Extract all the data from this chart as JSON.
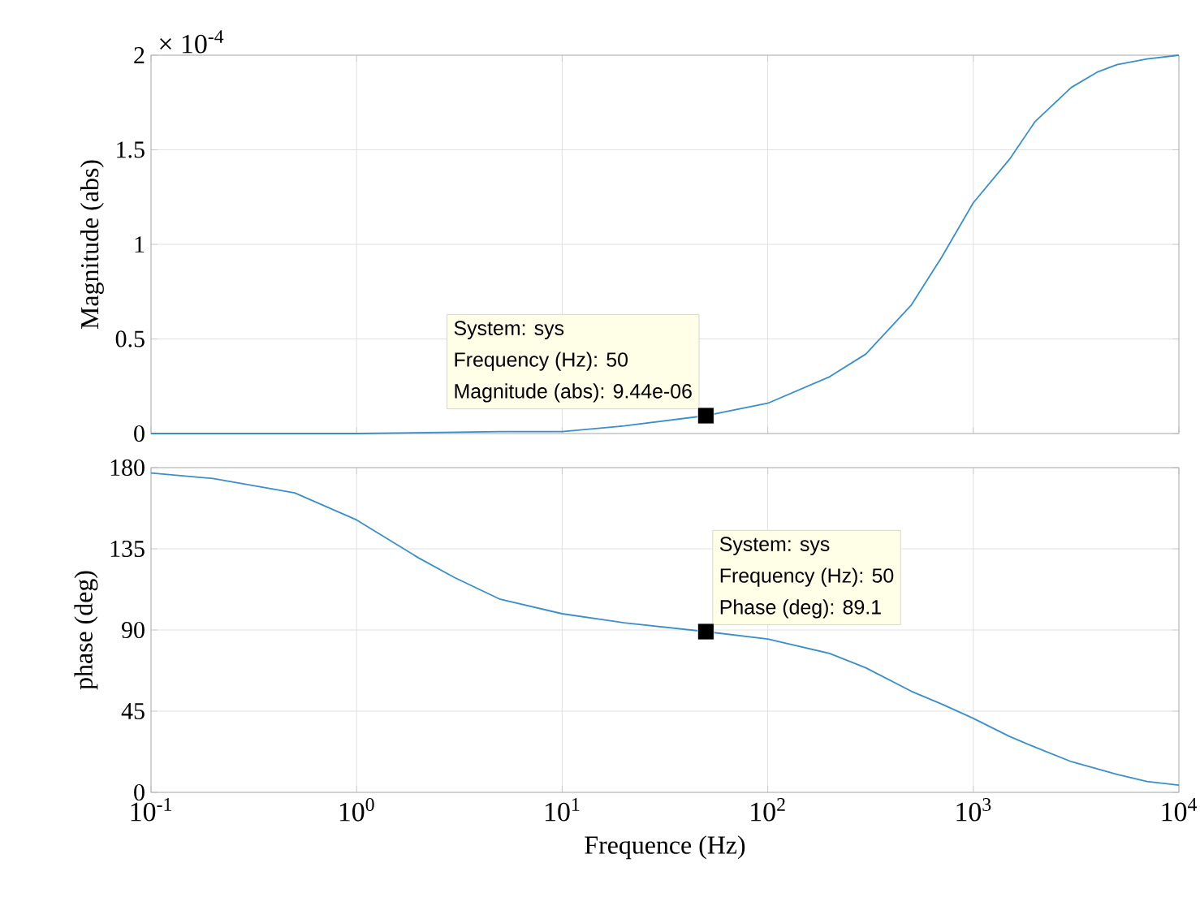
{
  "chart_data": [
    {
      "type": "line",
      "ylabel": "Magnitude (abs)",
      "log": "x",
      "grid": true,
      "tick_labels": "y",
      "xlim": [
        0.1,
        10000
      ],
      "xticks": [
        {
          "value": 0.1,
          "label": null
        },
        {
          "value": 1,
          "label": null
        },
        {
          "value": 10,
          "label": null
        },
        {
          "value": 100,
          "label": null
        },
        {
          "value": 1000,
          "label": null
        },
        {
          "value": 10000,
          "label": null
        }
      ],
      "ylim": [
        0,
        2
      ],
      "yticks": [
        0,
        0.5,
        1,
        1.5,
        2
      ],
      "series": [
        {
          "color": "#3a8fc8",
          "x": [
            0.1,
            1,
            5,
            10,
            20,
            50,
            100,
            200,
            300,
            500,
            700,
            1000,
            1500,
            2000,
            3000,
            4000,
            5000,
            7000,
            10000
          ],
          "values": [
            0,
            0,
            0.01,
            0.01,
            0.04,
            0.0944,
            0.16,
            0.3,
            0.42,
            0.68,
            0.93,
            1.22,
            1.45,
            1.65,
            1.83,
            1.91,
            1.95,
            1.98,
            2.0
          ]
        },
        {
          "type": "scatter",
          "marker": "square",
          "color": "#000000",
          "x": [
            50
          ],
          "values": [
            0.0944
          ]
        }
      ],
      "annotations": [
        "System: sys",
        "Frequency (Hz): 50",
        {
          "text": "Magnitude (abs): 9.44e-06",
          "x": 50,
          "y": 0.0944
        },
        "× 10$^{-4}$"
      ]
    },
    {
      "type": "line",
      "ylabel": "phase (deg)",
      "xlabel": "Frequence (Hz)",
      "log": "x",
      "grid": true,
      "xlim": [
        0.1,
        10000
      ],
      "xticks": [
        {
          "value": 0.1,
          "label": "10$^{-1}$"
        },
        {
          "value": 1,
          "label": "10$^{0}$"
        },
        {
          "value": 10,
          "label": "10$^{1}$"
        },
        {
          "value": 100,
          "label": "10$^{2}$"
        },
        {
          "value": 1000,
          "label": "10$^{3}$"
        },
        {
          "value": 10000,
          "label": "10$^{4}$"
        }
      ],
      "ylim": [
        0,
        180
      ],
      "yticks": [
        0,
        45,
        90,
        135,
        180
      ],
      "series": [
        {
          "color": "#3a8fc8",
          "x": [
            0.1,
            0.2,
            0.5,
            1,
            2,
            3,
            5,
            10,
            20,
            50,
            100,
            200,
            300,
            500,
            700,
            1000,
            1500,
            2000,
            3000,
            5000,
            7000,
            10000
          ],
          "values": [
            177,
            174,
            166,
            151,
            130,
            119,
            107,
            99,
            94,
            89.1,
            85,
            77,
            69,
            56,
            49,
            41,
            31,
            25,
            17,
            10,
            6,
            4
          ]
        },
        {
          "type": "scatter",
          "marker": "square",
          "color": "#000000",
          "x": [
            50
          ],
          "values": [
            89.1
          ]
        }
      ],
      "annotations": [
        "System: sys",
        "Frequency (Hz): 50",
        {
          "text": "Phase (deg): 89.1",
          "x": 50,
          "y": 89.1
        }
      ]
    }
  ]
}
